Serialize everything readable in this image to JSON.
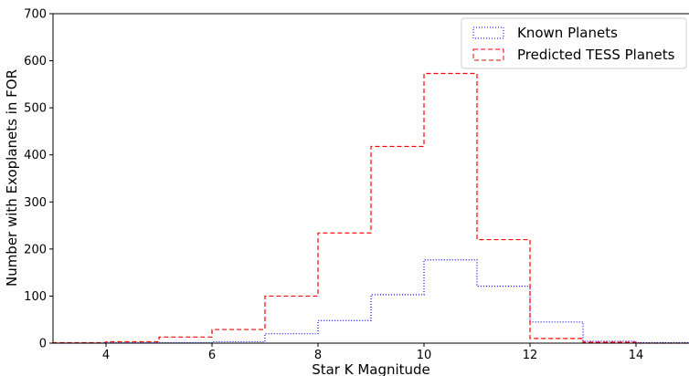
{
  "chart_data": {
    "type": "histogram-step",
    "xlabel": "Star K Magnitude",
    "ylabel": "Number with Exoplanets in FOR",
    "xlim": [
      3,
      15
    ],
    "ylim": [
      0,
      700
    ],
    "xticks": [
      4,
      6,
      8,
      10,
      12,
      14
    ],
    "yticks": [
      0,
      100,
      200,
      300,
      400,
      500,
      600,
      700
    ],
    "bin_edges": [
      3,
      4,
      5,
      6,
      7,
      8,
      9,
      10,
      11,
      12,
      13,
      14,
      15
    ],
    "series": [
      {
        "name": "Known Planets",
        "color": "#0000ff",
        "linestyle": "dotted",
        "values": [
          0,
          1,
          1,
          3,
          20,
          48,
          103,
          177,
          121,
          45,
          4,
          1
        ]
      },
      {
        "name": "Predicted TESS Planets",
        "color": "#ff0000",
        "linestyle": "dashed",
        "values": [
          1,
          3,
          13,
          29,
          100,
          234,
          418,
          573,
          220,
          10,
          2,
          0
        ]
      }
    ],
    "legend_position": "top-right",
    "grid": false
  }
}
